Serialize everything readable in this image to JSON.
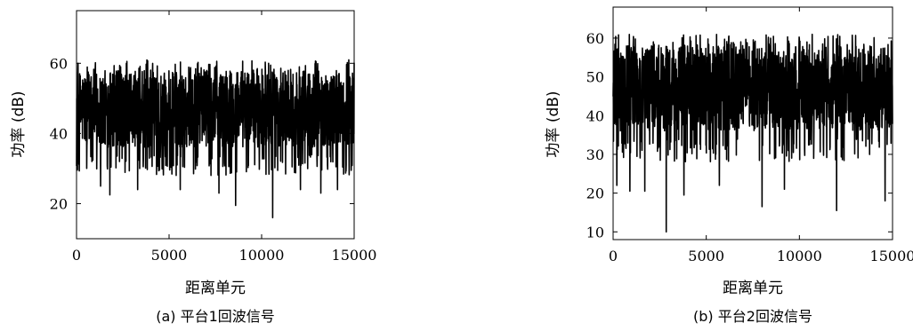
{
  "chart_data": [
    {
      "type": "line",
      "xlabel": "距离单元",
      "ylabel": "功率 (dB)",
      "caption": "(a) 平台1回波信号",
      "xlim": [
        0,
        15000
      ],
      "ylim": [
        10,
        75
      ],
      "xticks": [
        0,
        5000,
        10000,
        15000
      ],
      "yticks": [
        20,
        40,
        60
      ],
      "grid": false,
      "series": [
        {
          "color": "#000000",
          "values": {
            "x_min": 0,
            "x_max": 15000,
            "mean": 47,
            "noise_band": [
              36,
              58
            ],
            "max": 61,
            "dips": [
              [
                1300,
                25
              ],
              [
                1800,
                22.5
              ],
              [
                3300,
                24
              ],
              [
                5600,
                24
              ],
              [
                7700,
                23
              ],
              [
                8600,
                19.5
              ],
              [
                10600,
                16
              ],
              [
                12100,
                24
              ],
              [
                13200,
                23
              ],
              [
                14100,
                24
              ]
            ]
          }
        }
      ]
    },
    {
      "type": "line",
      "xlabel": "距离单元",
      "ylabel": "功率 (dB)",
      "caption": "(b) 平台2回波信号",
      "xlim": [
        0,
        15000
      ],
      "ylim": [
        8,
        68
      ],
      "xticks": [
        0,
        5000,
        10000,
        15000
      ],
      "yticks": [
        10,
        20,
        30,
        40,
        50,
        60
      ],
      "grid": false,
      "series": [
        {
          "color": "#000000",
          "values": {
            "x_min": 0,
            "x_max": 15000,
            "mean": 47,
            "noise_band": [
              36,
              58
            ],
            "max": 61,
            "dips": [
              [
                200,
                22
              ],
              [
                900,
                20.5
              ],
              [
                1700,
                20.5
              ],
              [
                2850,
                10
              ],
              [
                3800,
                19.5
              ],
              [
                5700,
                22
              ],
              [
                8000,
                16.5
              ],
              [
                9200,
                21
              ],
              [
                12000,
                15.5
              ],
              [
                14600,
                18
              ]
            ]
          }
        }
      ]
    }
  ]
}
